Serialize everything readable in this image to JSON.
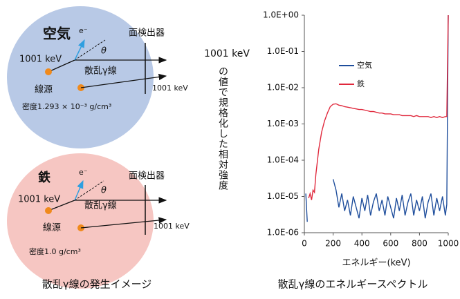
{
  "diagram": {
    "air": {
      "medium": "空気",
      "electron": "e⁻",
      "angle": "θ",
      "detector": "面検出器",
      "energy": "1001 keV",
      "scattered": "散乱γ線",
      "source": "線源",
      "direct_energy": "1001 keV",
      "density": "密度1.293 × 10⁻³ g/cm³"
    },
    "iron": {
      "medium": "鉄",
      "electron": "e⁻",
      "angle": "θ",
      "detector": "面検出器",
      "energy": "1001 keV",
      "scattered": "散乱γ線",
      "source": "線源",
      "direct_energy": "1001 keV",
      "density": "密度1.0 g/cm³"
    }
  },
  "captions": [
    "散乱γ線の発生イメージ",
    "散乱γ線のエネルギースペクトル"
  ],
  "chart_data": {
    "type": "line",
    "y_label_top": "1001 keV",
    "y_label": "の値で規格化した相対強度",
    "x_label": "エネルギー(keV)",
    "x": [
      10,
      20,
      30,
      40,
      50,
      60,
      70,
      80,
      100,
      120,
      140,
      160,
      180,
      200,
      220,
      240,
      260,
      280,
      300,
      320,
      340,
      360,
      380,
      400,
      420,
      440,
      460,
      480,
      500,
      520,
      540,
      560,
      580,
      600,
      620,
      640,
      660,
      680,
      700,
      720,
      740,
      760,
      780,
      800,
      820,
      840,
      860,
      880,
      900,
      920,
      940,
      960,
      980,
      990,
      1000
    ],
    "series": [
      {
        "name": "空気",
        "color": "#1f4e9c",
        "values": [
          1.2e-05,
          2e-06,
          null,
          null,
          null,
          null,
          null,
          null,
          null,
          null,
          null,
          null,
          null,
          3e-05,
          1.5e-05,
          5e-06,
          1.2e-05,
          4e-06,
          8e-06,
          3e-06,
          1e-05,
          5e-06,
          2.5e-06,
          9e-06,
          4e-06,
          1.1e-05,
          3e-06,
          7e-06,
          1.2e-05,
          4e-06,
          8e-06,
          3e-06,
          1e-05,
          5e-06,
          2.5e-06,
          9e-06,
          4e-06,
          1.1e-05,
          3e-06,
          7e-06,
          1.2e-05,
          3e-06,
          8e-06,
          4e-06,
          1e-05,
          2.5e-06,
          7e-06,
          1.2e-05,
          3e-06,
          9e-06,
          4e-06,
          1e-05,
          3e-06,
          6e-06,
          1
        ]
      },
      {
        "name": "鉄",
        "color": "#e0283c",
        "values": [
          null,
          null,
          9e-06,
          1.2e-05,
          8e-06,
          1.5e-05,
          1.3e-05,
          4e-05,
          0.0002,
          0.0006,
          0.0012,
          0.002,
          0.003,
          0.0035,
          0.0036,
          0.0033,
          0.0032,
          0.003,
          0.0029,
          0.0028,
          0.0027,
          0.0026,
          0.0025,
          0.0025,
          0.0024,
          0.0023,
          0.0022,
          0.0022,
          0.0021,
          0.002,
          0.002,
          0.0019,
          0.0019,
          0.0019,
          0.0018,
          0.0018,
          0.0018,
          0.0017,
          0.0017,
          0.0017,
          0.0017,
          0.0016,
          0.0017,
          0.0016,
          0.0016,
          0.0016,
          0.0016,
          0.0015,
          0.0016,
          0.0015,
          0.0016,
          0.0015,
          0.0016,
          0.0016,
          1
        ]
      }
    ],
    "xlim": [
      0,
      1000
    ],
    "xticks": [
      0,
      200,
      400,
      600,
      800,
      1000
    ],
    "ylim": [
      1e-06,
      1
    ],
    "log_y": true,
    "yticks": [
      {
        "value": 1e-06,
        "label": "1.0E-06"
      },
      {
        "value": 1e-05,
        "label": "1.0E-05"
      },
      {
        "value": 0.0001,
        "label": "1.0E-04"
      },
      {
        "value": 0.001,
        "label": "1.0E-03"
      },
      {
        "value": 0.01,
        "label": "1.0E-02"
      },
      {
        "value": 0.1,
        "label": "1.0E-01"
      },
      {
        "value": 1,
        "label": "1.0E+00"
      }
    ]
  }
}
